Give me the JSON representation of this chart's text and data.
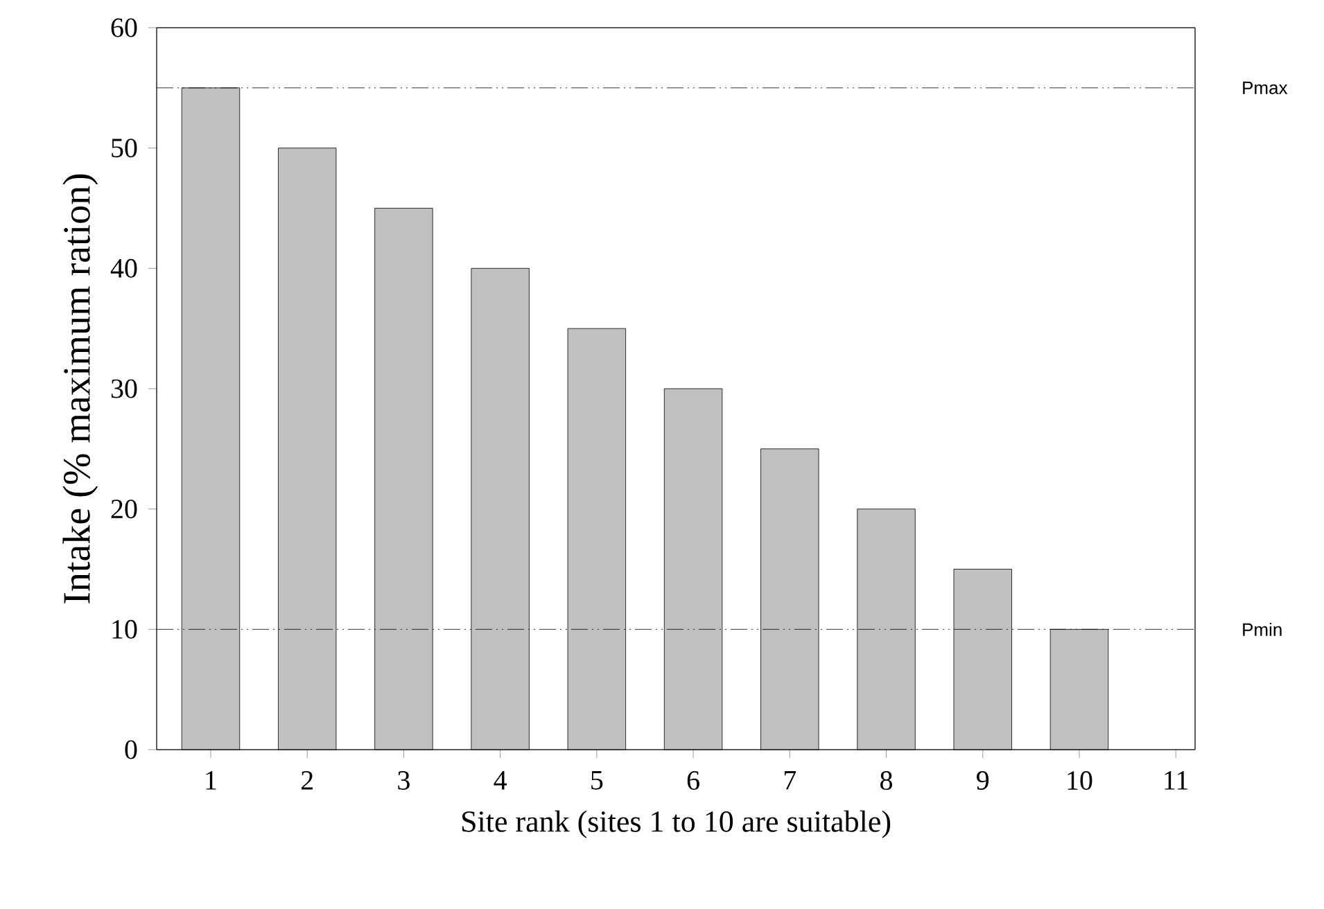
{
  "chart_data": {
    "type": "bar",
    "xlabel": "Site rank (sites 1 to 10 are suitable)",
    "ylabel": "Intake (% maximum ration)",
    "categories": [
      "1",
      "2",
      "3",
      "4",
      "5",
      "6",
      "7",
      "8",
      "9",
      "10",
      "11"
    ],
    "values": [
      55,
      50,
      45,
      40,
      35,
      30,
      25,
      20,
      15,
      10,
      null
    ],
    "color": "#c0c0c0",
    "ylim": [
      0,
      60
    ],
    "yticks": [
      0,
      10,
      20,
      30,
      40,
      50,
      60
    ],
    "grid": false,
    "ref_lines": [
      {
        "axis": "y",
        "value": 55,
        "label": "Pmax",
        "color": "#000000",
        "line_style": "dashdotdot"
      },
      {
        "axis": "y",
        "value": 10,
        "label": "Pmin",
        "color": "#000000",
        "line_style": "dashdotdot"
      }
    ]
  }
}
